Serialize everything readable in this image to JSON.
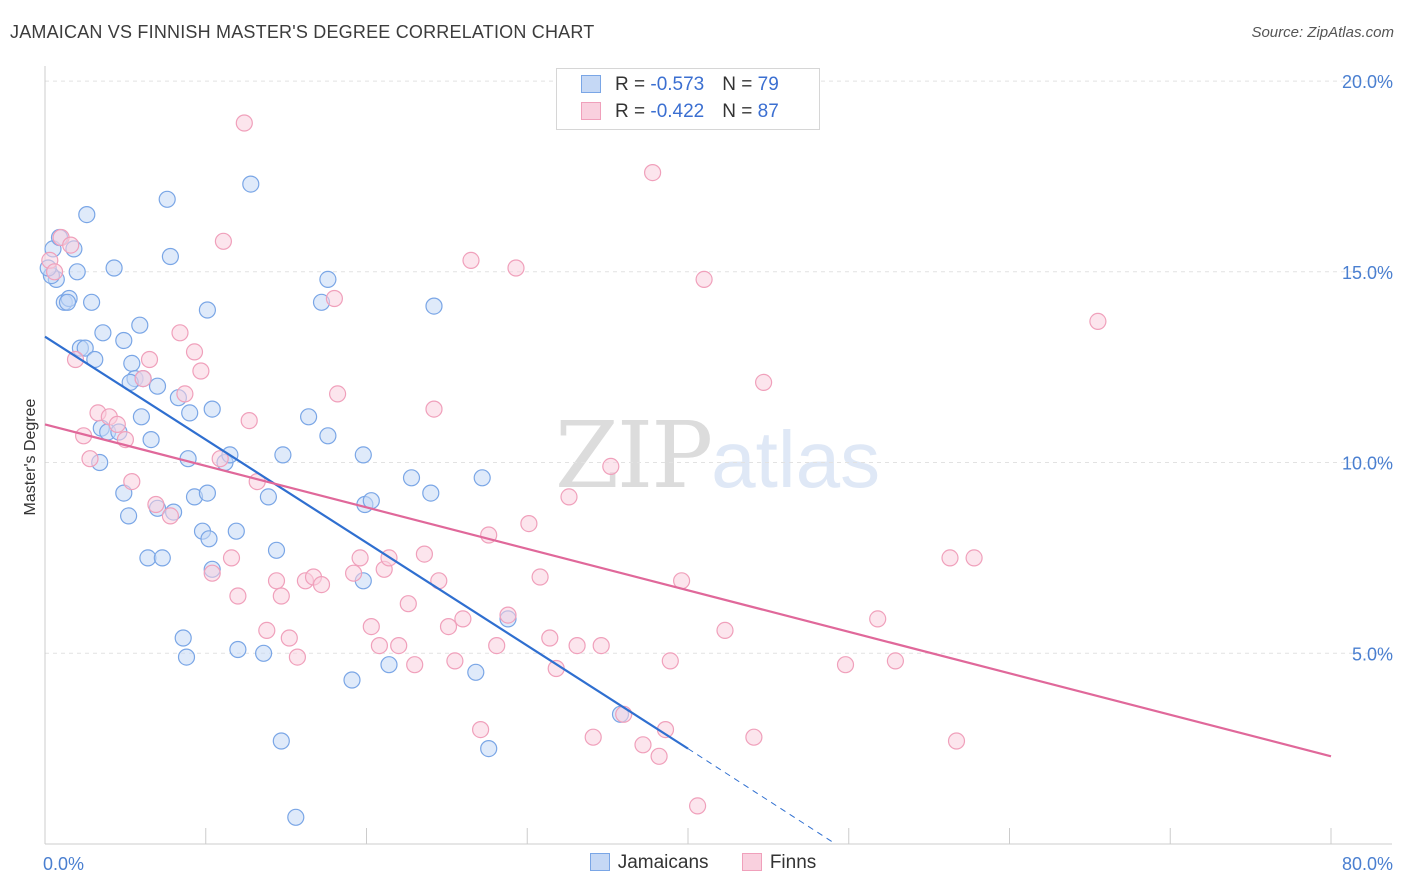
{
  "title": "JAMAICAN VS FINNISH MASTER'S DEGREE CORRELATION CHART",
  "source": "Source: ZipAtlas.com",
  "watermark": {
    "zip": "ZIP",
    "atlas": "atlas"
  },
  "legend": {
    "rows": [
      {
        "r_label": "R = ",
        "r_value": "-0.573",
        "n_label": "N = ",
        "n_value": "79"
      },
      {
        "r_label": "R = ",
        "r_value": "-0.422",
        "n_label": "N = ",
        "n_value": "87"
      }
    ]
  },
  "chart_data": {
    "type": "scatter",
    "title": "JAMAICAN VS FINNISH MASTER'S DEGREE CORRELATION CHART",
    "xlabel": "",
    "ylabel": "Master's Degree",
    "xlim": [
      0,
      80
    ],
    "ylim": [
      0,
      20.5
    ],
    "x_tick_labels": [
      "0.0%",
      "80.0%"
    ],
    "y_ticks": [
      5,
      10,
      15,
      20
    ],
    "y_tick_labels": [
      "5.0%",
      "10.0%",
      "15.0%",
      "20.0%"
    ],
    "grid": true,
    "legend_position": "top-center",
    "series": [
      {
        "name": "Jamaicans",
        "color": "#7aa6e6",
        "fill": "#c5d8f5",
        "trend_color": "#2f6fd0",
        "trend": {
          "x0": 0,
          "y0": 13.3,
          "x1": 40,
          "y1": 2.5,
          "dashed_to_x": 49,
          "dashed_to_y": 0.05
        },
        "points": [
          [
            0.5,
            15.6
          ],
          [
            0.7,
            14.8
          ],
          [
            0.9,
            15.9
          ],
          [
            1.2,
            14.2
          ],
          [
            1.5,
            14.3
          ],
          [
            1.8,
            15.6
          ],
          [
            2.0,
            15.0
          ],
          [
            2.6,
            16.5
          ],
          [
            2.9,
            14.2
          ],
          [
            2.2,
            13.0
          ],
          [
            2.5,
            13.0
          ],
          [
            3.1,
            12.7
          ],
          [
            3.6,
            13.4
          ],
          [
            4.3,
            15.1
          ],
          [
            4.9,
            13.2
          ],
          [
            5.4,
            12.6
          ],
          [
            5.6,
            12.2
          ],
          [
            5.9,
            13.6
          ],
          [
            6.0,
            11.2
          ],
          [
            7.0,
            12.0
          ],
          [
            7.6,
            16.9
          ],
          [
            7.8,
            15.4
          ],
          [
            8.3,
            11.7
          ],
          [
            9.0,
            11.3
          ],
          [
            10.1,
            14.0
          ],
          [
            10.4,
            11.4
          ],
          [
            12.8,
            17.3
          ],
          [
            3.5,
            10.9
          ],
          [
            3.9,
            10.8
          ],
          [
            4.6,
            10.8
          ],
          [
            6.6,
            10.6
          ],
          [
            8.9,
            10.1
          ],
          [
            9.3,
            9.1
          ],
          [
            10.1,
            9.2
          ],
          [
            11.2,
            10.0
          ],
          [
            11.5,
            10.2
          ],
          [
            3.4,
            10.0
          ],
          [
            4.9,
            9.2
          ],
          [
            5.2,
            8.6
          ],
          [
            7.0,
            8.8
          ],
          [
            8.0,
            8.7
          ],
          [
            9.8,
            8.2
          ],
          [
            10.2,
            8.0
          ],
          [
            11.9,
            8.2
          ],
          [
            13.9,
            9.1
          ],
          [
            14.8,
            10.2
          ],
          [
            16.4,
            11.2
          ],
          [
            17.6,
            10.7
          ],
          [
            19.8,
            10.2
          ],
          [
            19.9,
            8.9
          ],
          [
            20.3,
            9.0
          ],
          [
            22.8,
            9.6
          ],
          [
            24.0,
            9.2
          ],
          [
            27.2,
            9.6
          ],
          [
            6.4,
            7.5
          ],
          [
            7.3,
            7.5
          ],
          [
            10.4,
            7.2
          ],
          [
            14.4,
            7.7
          ],
          [
            19.8,
            6.9
          ],
          [
            8.6,
            5.4
          ],
          [
            8.8,
            4.9
          ],
          [
            12.0,
            5.1
          ],
          [
            13.6,
            5.0
          ],
          [
            19.1,
            4.3
          ],
          [
            21.4,
            4.7
          ],
          [
            26.8,
            4.5
          ],
          [
            27.6,
            2.5
          ],
          [
            28.8,
            5.9
          ],
          [
            35.8,
            3.4
          ],
          [
            14.7,
            2.7
          ],
          [
            15.6,
            0.7
          ],
          [
            17.2,
            14.2
          ],
          [
            17.6,
            14.8
          ],
          [
            24.2,
            14.1
          ],
          [
            0.4,
            14.9
          ],
          [
            0.2,
            15.1
          ],
          [
            1.4,
            14.2
          ],
          [
            6.1,
            12.2
          ],
          [
            5.3,
            12.1
          ]
        ]
      },
      {
        "name": "Finns",
        "color": "#f0a0bb",
        "fill": "#f9d0de",
        "trend_color": "#e0689a",
        "trend": {
          "x0": 0,
          "y0": 11.0,
          "x1": 80,
          "y1": 2.3
        },
        "points": [
          [
            0.3,
            15.3
          ],
          [
            0.6,
            15.0
          ],
          [
            1.0,
            15.9
          ],
          [
            1.6,
            15.7
          ],
          [
            1.9,
            12.7
          ],
          [
            2.4,
            10.7
          ],
          [
            2.8,
            10.1
          ],
          [
            3.3,
            11.3
          ],
          [
            4.0,
            11.2
          ],
          [
            4.5,
            11.0
          ],
          [
            5.0,
            10.6
          ],
          [
            5.4,
            9.5
          ],
          [
            6.1,
            12.2
          ],
          [
            6.5,
            12.7
          ],
          [
            6.9,
            8.9
          ],
          [
            7.8,
            8.6
          ],
          [
            8.4,
            13.4
          ],
          [
            8.7,
            11.8
          ],
          [
            9.3,
            12.9
          ],
          [
            9.7,
            12.4
          ],
          [
            10.4,
            7.1
          ],
          [
            10.9,
            10.1
          ],
          [
            11.1,
            15.8
          ],
          [
            11.6,
            7.5
          ],
          [
            12.0,
            6.5
          ],
          [
            12.4,
            18.9
          ],
          [
            12.7,
            11.1
          ],
          [
            13.2,
            9.5
          ],
          [
            13.8,
            5.6
          ],
          [
            14.4,
            6.9
          ],
          [
            14.7,
            6.5
          ],
          [
            15.2,
            5.4
          ],
          [
            15.7,
            4.9
          ],
          [
            16.2,
            6.9
          ],
          [
            16.7,
            7.0
          ],
          [
            17.2,
            6.8
          ],
          [
            18.0,
            14.3
          ],
          [
            18.2,
            11.8
          ],
          [
            19.2,
            7.1
          ],
          [
            19.6,
            7.5
          ],
          [
            20.3,
            5.7
          ],
          [
            20.8,
            5.2
          ],
          [
            21.1,
            7.2
          ],
          [
            21.4,
            7.5
          ],
          [
            22.0,
            5.2
          ],
          [
            22.6,
            6.3
          ],
          [
            23.0,
            4.7
          ],
          [
            23.6,
            7.6
          ],
          [
            24.2,
            11.4
          ],
          [
            24.5,
            6.9
          ],
          [
            25.1,
            5.7
          ],
          [
            25.5,
            4.8
          ],
          [
            26.0,
            5.9
          ],
          [
            26.5,
            15.3
          ],
          [
            27.1,
            3.0
          ],
          [
            27.6,
            8.1
          ],
          [
            28.1,
            5.2
          ],
          [
            28.8,
            6.0
          ],
          [
            29.3,
            15.1
          ],
          [
            30.1,
            8.4
          ],
          [
            30.8,
            7.0
          ],
          [
            31.4,
            5.4
          ],
          [
            31.8,
            4.6
          ],
          [
            32.6,
            9.1
          ],
          [
            33.1,
            5.2
          ],
          [
            34.1,
            2.8
          ],
          [
            34.6,
            5.2
          ],
          [
            35.2,
            9.9
          ],
          [
            36.0,
            3.4
          ],
          [
            37.2,
            2.6
          ],
          [
            37.8,
            17.6
          ],
          [
            38.2,
            2.3
          ],
          [
            38.6,
            3.0
          ],
          [
            38.9,
            4.8
          ],
          [
            39.6,
            6.9
          ],
          [
            40.6,
            1.0
          ],
          [
            41.0,
            14.8
          ],
          [
            42.3,
            5.6
          ],
          [
            44.1,
            2.8
          ],
          [
            44.7,
            12.1
          ],
          [
            49.8,
            4.7
          ],
          [
            51.8,
            5.9
          ],
          [
            52.9,
            4.8
          ],
          [
            56.3,
            7.5
          ],
          [
            56.7,
            2.7
          ],
          [
            57.8,
            7.5
          ],
          [
            65.5,
            13.7
          ]
        ]
      }
    ]
  }
}
